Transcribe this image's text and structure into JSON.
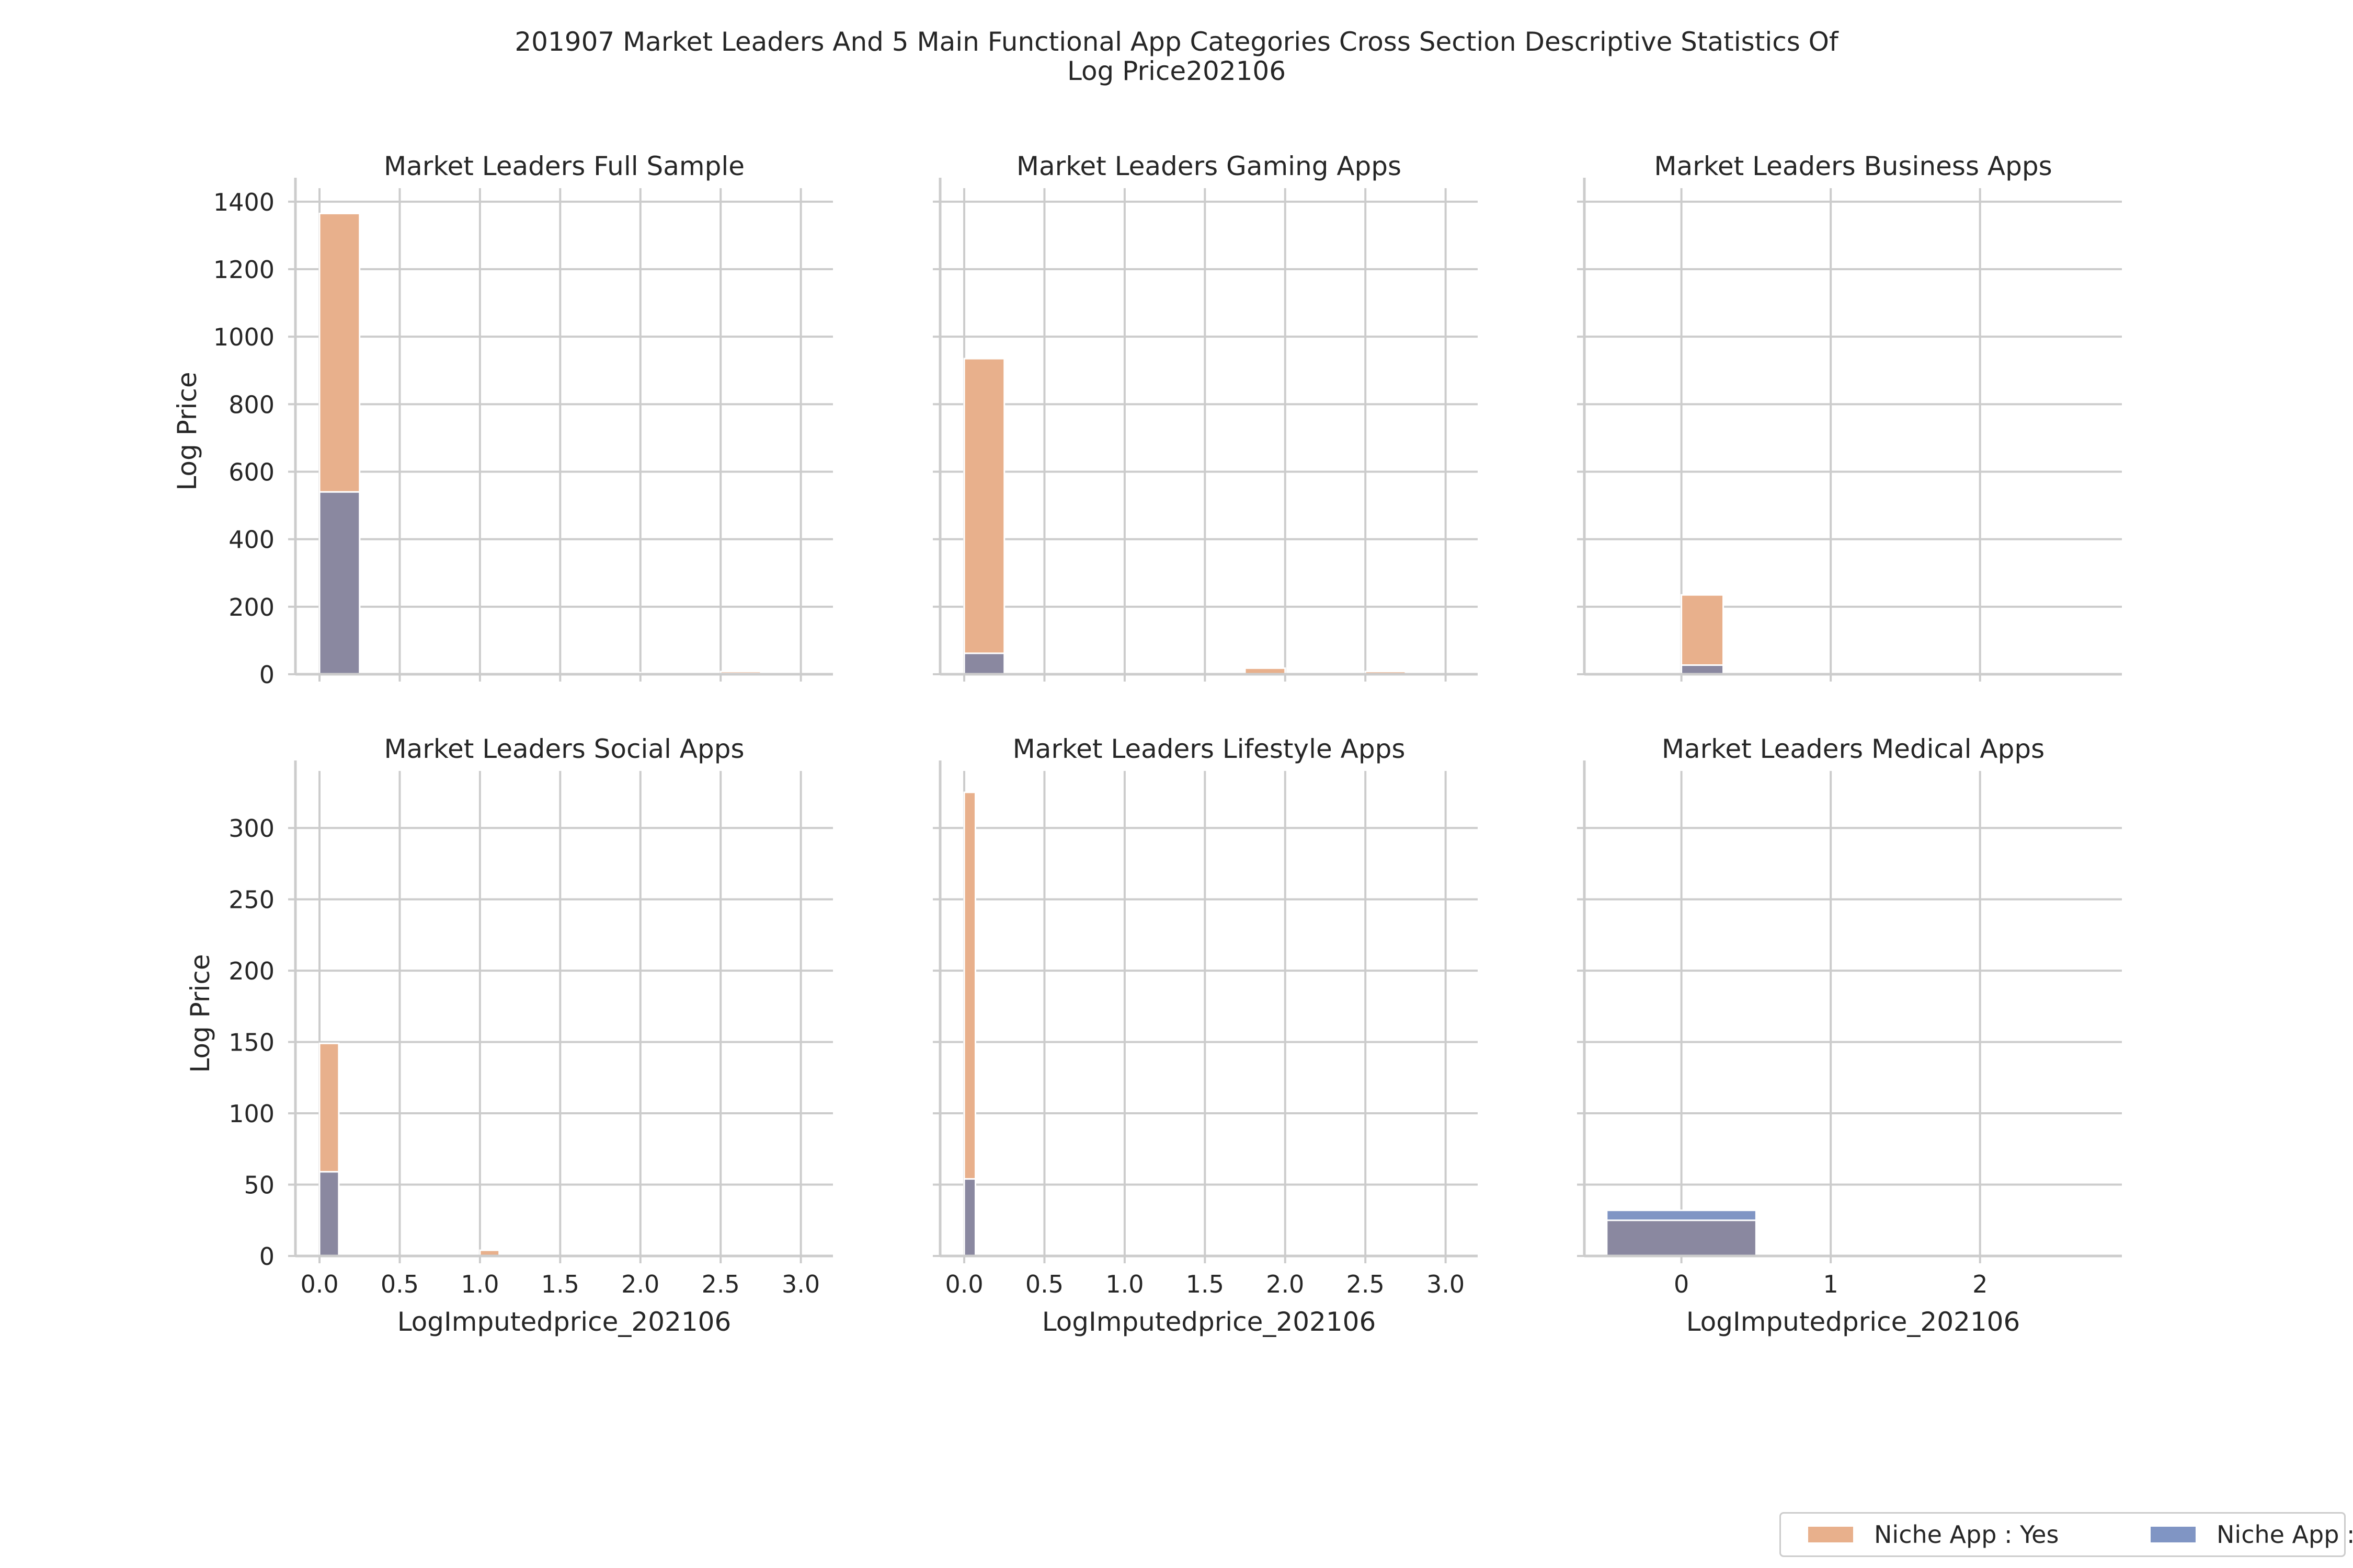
{
  "figure": {
    "title_line1": "201907 Market Leaders And 5 Main Functional App Categories Cross Section Descriptive Statistics Of",
    "title_line2": "Log Price202106"
  },
  "colors": {
    "yes": "#e8b08c",
    "no": "#8095c4",
    "overlap": "#8a88a0",
    "grid": "#cccccc",
    "axis": "#cccccc"
  },
  "legend": {
    "items": [
      {
        "label": "Niche App : Yes",
        "color": "#e8b08c"
      },
      {
        "label": "Niche App : No",
        "color": "#8095c4"
      }
    ]
  },
  "chart_data": [
    {
      "type": "bar",
      "title": "Market Leaders Full Sample",
      "ylabel": "Log Price",
      "xlabel": "",
      "xlim": [
        -0.15,
        3.2
      ],
      "ylim": [
        0,
        1440
      ],
      "xticks": [
        0.0,
        0.5,
        1.0,
        1.5,
        2.0,
        2.5,
        3.0
      ],
      "show_xticklabels": false,
      "yticks": [
        0,
        200,
        400,
        600,
        800,
        1000,
        1200,
        1400
      ],
      "show_yticklabels": true,
      "bin_width": 0.25,
      "series": [
        {
          "name": "Niche App : Yes",
          "bins": [
            [
              0.0,
              1365
            ],
            [
              1.75,
              5
            ],
            [
              2.5,
              8
            ]
          ]
        },
        {
          "name": "Niche App : No",
          "bins": [
            [
              0.0,
              540
            ],
            [
              1.75,
              4
            ],
            [
              2.5,
              2
            ]
          ]
        }
      ]
    },
    {
      "type": "bar",
      "title": "Market Leaders Gaming Apps",
      "ylabel": "",
      "xlabel": "",
      "xlim": [
        -0.15,
        3.2
      ],
      "ylim": [
        0,
        1440
      ],
      "xticks": [
        0.0,
        0.5,
        1.0,
        1.5,
        2.0,
        2.5,
        3.0
      ],
      "show_xticklabels": false,
      "yticks": [
        0,
        200,
        400,
        600,
        800,
        1000,
        1200,
        1400
      ],
      "show_yticklabels": false,
      "bin_width": 0.25,
      "series": [
        {
          "name": "Niche App : Yes",
          "bins": [
            [
              0.0,
              935
            ],
            [
              1.75,
              18
            ],
            [
              2.5,
              8
            ]
          ]
        },
        {
          "name": "Niche App : No",
          "bins": [
            [
              0.0,
              62
            ]
          ]
        }
      ]
    },
    {
      "type": "bar",
      "title": "Market Leaders Business Apps",
      "ylabel": "",
      "xlabel": "",
      "xlim": [
        -0.65,
        2.95
      ],
      "ylim": [
        0,
        1440
      ],
      "xticks": [
        0,
        1,
        2
      ],
      "show_xticklabels": false,
      "yticks": [
        0,
        200,
        400,
        600,
        800,
        1000,
        1200,
        1400
      ],
      "show_yticklabels": false,
      "bin_width": 0.28,
      "series": [
        {
          "name": "Niche App : Yes",
          "bins": [
            [
              0.0,
              235
            ]
          ]
        },
        {
          "name": "Niche App : No",
          "bins": [
            [
              0.0,
              27
            ]
          ]
        }
      ]
    },
    {
      "type": "bar",
      "title": "Market Leaders Social Apps",
      "ylabel": "Log Price",
      "xlabel": "LogImputedprice_202106",
      "xlim": [
        -0.15,
        3.2
      ],
      "ylim": [
        0,
        340
      ],
      "xticks": [
        0.0,
        0.5,
        1.0,
        1.5,
        2.0,
        2.5,
        3.0
      ],
      "show_xticklabels": true,
      "yticks": [
        0,
        50,
        100,
        150,
        200,
        250,
        300
      ],
      "show_yticklabels": true,
      "bin_width": 0.12,
      "series": [
        {
          "name": "Niche App : Yes",
          "bins": [
            [
              0.0,
              149
            ],
            [
              1.0,
              4
            ]
          ]
        },
        {
          "name": "Niche App : No",
          "bins": [
            [
              0.0,
              59
            ]
          ]
        }
      ]
    },
    {
      "type": "bar",
      "title": "Market Leaders Lifestyle Apps",
      "ylabel": "",
      "xlabel": "LogImputedprice_202106",
      "xlim": [
        -0.15,
        3.2
      ],
      "ylim": [
        0,
        340
      ],
      "xticks": [
        0.0,
        0.5,
        1.0,
        1.5,
        2.0,
        2.5,
        3.0
      ],
      "show_xticklabels": true,
      "yticks": [
        0,
        50,
        100,
        150,
        200,
        250,
        300
      ],
      "show_yticklabels": false,
      "bin_width": 0.07,
      "series": [
        {
          "name": "Niche App : Yes",
          "bins": [
            [
              0.0,
              325
            ],
            [
              0.7,
              1
            ]
          ]
        },
        {
          "name": "Niche App : No",
          "bins": [
            [
              0.0,
              54
            ]
          ]
        }
      ]
    },
    {
      "type": "bar",
      "title": "Market Leaders Medical Apps",
      "ylabel": "",
      "xlabel": "LogImputedprice_202106",
      "xlim": [
        -0.65,
        2.95
      ],
      "ylim": [
        0,
        340
      ],
      "xticks": [
        0,
        1,
        2
      ],
      "show_xticklabels": true,
      "yticks": [
        0,
        50,
        100,
        150,
        200,
        250,
        300
      ],
      "show_yticklabels": false,
      "bin_width": 1.0,
      "series": [
        {
          "name": "Niche App : Yes",
          "bins": [
            [
              -0.5,
              25
            ]
          ]
        },
        {
          "name": "Niche App : No",
          "bins": [
            [
              -0.5,
              32
            ]
          ]
        }
      ]
    }
  ]
}
